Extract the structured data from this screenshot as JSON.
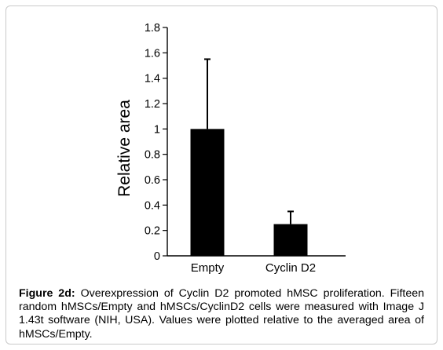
{
  "chart_data": {
    "type": "bar",
    "categories": [
      "Empty",
      "Cyclin D2"
    ],
    "values": [
      1.0,
      0.25
    ],
    "error_upper": [
      1.55,
      0.35
    ],
    "title": "",
    "xlabel": "",
    "ylabel": "Relative area",
    "ylim": [
      0,
      1.8
    ],
    "yticks": [
      "0",
      "0.2",
      "0.4",
      "0.6",
      "0.8",
      "1",
      "1.2",
      "1.4",
      "1.6",
      "1.8"
    ],
    "grid": false,
    "legend": "none",
    "bar_color": "#000000"
  },
  "caption": {
    "label": "Figure 2d:",
    "text": "Overexpression of Cyclin D2 promoted hMSC proliferation. Fifteen random hMSCs/Empty and hMSCs/CyclinD2 cells were measured with Image J 1.43t software (NIH, USA). Values were plotted relative to the averaged area of hMSCs/Empty."
  }
}
